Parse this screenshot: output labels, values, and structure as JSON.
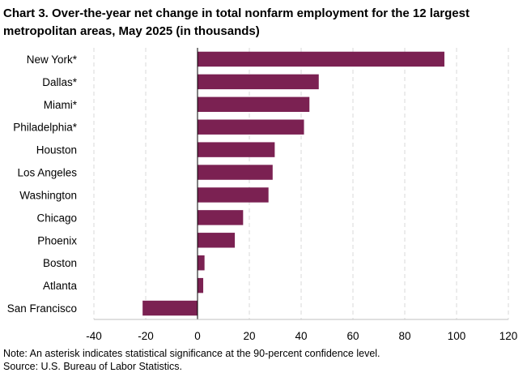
{
  "chart_data": {
    "type": "bar",
    "orientation": "horizontal",
    "title": "Chart 3. Over-the-year net change in total nonfarm employment for the 12 largest metropolitan areas, May 2025 (in thousands)",
    "categories": [
      "New York*",
      "Dallas*",
      "Miami*",
      "Philadelphia*",
      "Houston",
      "Los Angeles",
      "Washington",
      "Chicago",
      "Phoenix",
      "Boston",
      "Atlanta",
      "San Francisco"
    ],
    "values": [
      95.3,
      46.8,
      43.2,
      41.1,
      29.8,
      29.0,
      27.4,
      17.6,
      14.4,
      2.7,
      2.2,
      -21.2
    ],
    "xlim": [
      -40,
      120
    ],
    "xticks": [
      -40,
      -20,
      0,
      20,
      40,
      60,
      80,
      100,
      120
    ],
    "xlabel": "",
    "ylabel": "",
    "grid": "vertical dashed",
    "bar_color": "#7b2152"
  },
  "notes": {
    "note": "Note: An asterisk indicates statistical significance at the 90-percent confidence level.",
    "source": "Source: U.S. Bureau of Labor Statistics."
  }
}
